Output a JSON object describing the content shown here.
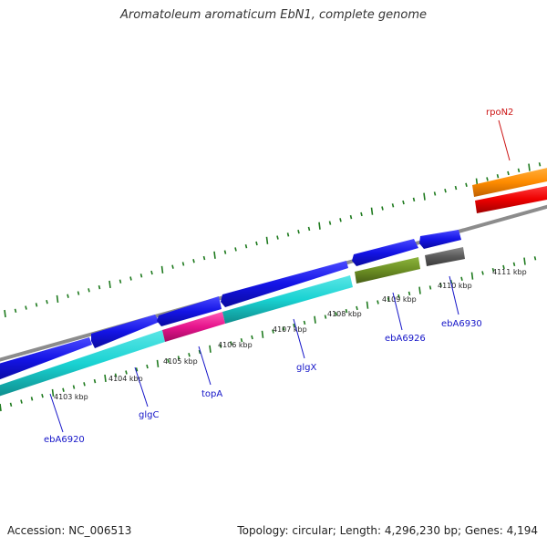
{
  "title": "Aromatoleum aromaticum EbN1, complete genome",
  "footer": {
    "accession": "Accession: NC_006513",
    "summary": "Topology: circular; Length: 4,296,230 bp; Genes: 4,194"
  },
  "colors": {
    "background": "#ffffff",
    "backbone": "#8c8c8c",
    "tick": "#1e7a1e",
    "forward_cds": "#1a1ae6",
    "reverse_cds": "#19d2d2",
    "label_blue": "#1414c8",
    "label_red": "#cc1414"
  },
  "ticks": {
    "labels": [
      "4103 kbp",
      "4104 kbp",
      "4105 kbp",
      "4106 kbp",
      "4107 kbp",
      "4108 kbp",
      "4109 kbp",
      "4110 kbp",
      "4111 kbp"
    ]
  },
  "gene_labels": [
    "ebA6920",
    "glgC",
    "topA",
    "glgX",
    "ebA6926",
    "ebA6930",
    "rpoN2"
  ]
}
